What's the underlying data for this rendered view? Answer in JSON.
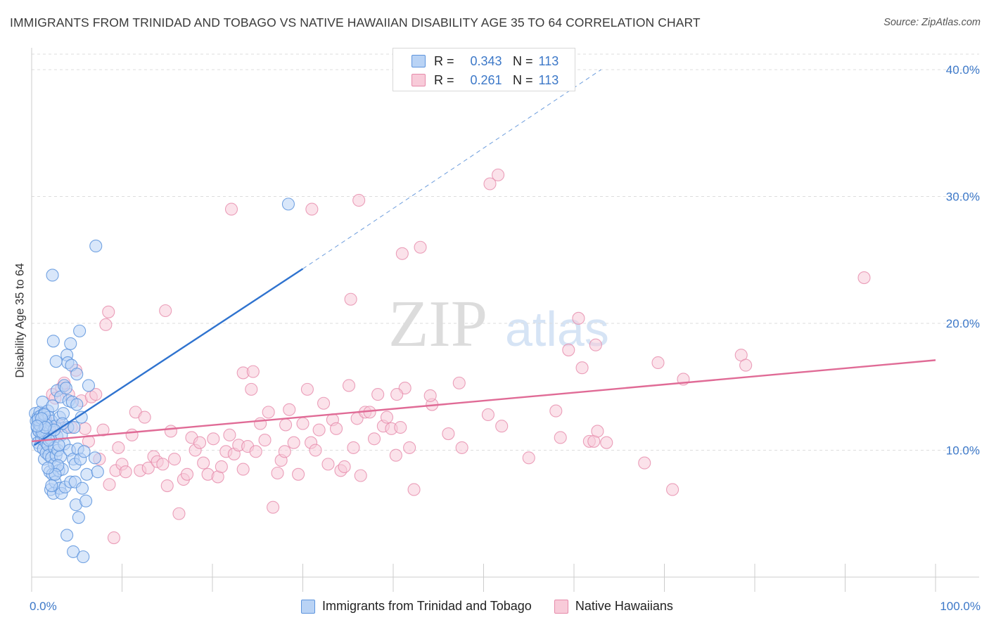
{
  "title": "IMMIGRANTS FROM TRINIDAD AND TOBAGO VS NATIVE HAWAIIAN DISABILITY AGE 35 TO 64 CORRELATION CHART",
  "source": "Source: ZipAtlas.com",
  "watermark": {
    "zip": "ZIP",
    "atlas": "atlas"
  },
  "legend": {
    "rows": [
      {
        "r_label": "R =",
        "r_value": "0.343",
        "n_label": "N =",
        "n_value": "113"
      },
      {
        "r_label": "R =",
        "r_value": "0.261",
        "n_label": "N =",
        "n_value": "113"
      }
    ]
  },
  "bottom_legend": {
    "series1": "Immigrants from Trinidad and Tobago",
    "series2": "Native Hawaiians"
  },
  "colors": {
    "blue_fill": "#b9d3f5",
    "blue_stroke": "#5d94dd",
    "blue_line": "#2f73cf",
    "pink_fill": "#f8cbd9",
    "pink_stroke": "#e68aaa",
    "pink_line": "#e06b96",
    "tick_text": "#3c78c8"
  },
  "chart_data": {
    "type": "scatter",
    "title": "IMMIGRANTS FROM TRINIDAD AND TOBAGO VS NATIVE HAWAIIAN DISABILITY AGE 35 TO 64 CORRELATION CHART",
    "xlabel": "",
    "ylabel": "Disability Age 35 to 64",
    "xlim": [
      0,
      100
    ],
    "ylim": [
      0,
      41.5
    ],
    "x_tick_labels": [
      "0.0%",
      "100.0%"
    ],
    "y_ticks": [
      10,
      20,
      30,
      40
    ],
    "y_tick_labels": [
      "10.0%",
      "20.0%",
      "30.0%",
      "40.0%"
    ],
    "grid": true,
    "legend_position": "top-center",
    "series": [
      {
        "name": "Immigrants from Trinidad and Tobago",
        "color": "#5d94dd",
        "r": 0.343,
        "n": 113,
        "trend": {
          "x": [
            0.3,
            30
          ],
          "y": [
            10.4,
            24.3
          ],
          "dashed_to": [
            63,
            40.0
          ]
        },
        "points": [
          [
            0.4,
            12.9
          ],
          [
            0.5,
            12.3
          ],
          [
            0.6,
            11.8
          ],
          [
            0.6,
            11.2
          ],
          [
            0.7,
            12.6
          ],
          [
            0.7,
            10.6
          ],
          [
            0.8,
            12.0
          ],
          [
            0.8,
            11.5
          ],
          [
            0.9,
            13.0
          ],
          [
            0.9,
            10.3
          ],
          [
            1.0,
            12.7
          ],
          [
            1.0,
            11.9
          ],
          [
            1.1,
            11.3
          ],
          [
            1.1,
            10.9
          ],
          [
            1.2,
            13.8
          ],
          [
            1.2,
            12.2
          ],
          [
            1.3,
            11.6
          ],
          [
            1.3,
            10.1
          ],
          [
            1.4,
            12.9
          ],
          [
            1.4,
            9.3
          ],
          [
            1.5,
            12.4
          ],
          [
            1.5,
            11.0
          ],
          [
            1.6,
            10.6
          ],
          [
            1.6,
            9.8
          ],
          [
            1.7,
            12.1
          ],
          [
            1.7,
            11.4
          ],
          [
            1.8,
            13.1
          ],
          [
            1.8,
            10.4
          ],
          [
            1.9,
            9.6
          ],
          [
            1.9,
            12.6
          ],
          [
            2.0,
            11.7
          ],
          [
            2.0,
            8.3
          ],
          [
            2.1,
            10.9
          ],
          [
            2.1,
            6.9
          ],
          [
            2.2,
            12.3
          ],
          [
            2.2,
            9.4
          ],
          [
            2.3,
            13.5
          ],
          [
            2.3,
            8.1
          ],
          [
            2.4,
            18.6
          ],
          [
            2.4,
            6.6
          ],
          [
            2.5,
            10.2
          ],
          [
            2.5,
            8.9
          ],
          [
            2.6,
            11.9
          ],
          [
            2.6,
            7.5
          ],
          [
            2.7,
            17.0
          ],
          [
            2.7,
            9.6
          ],
          [
            2.8,
            14.7
          ],
          [
            2.8,
            11.1
          ],
          [
            2.9,
            10.0
          ],
          [
            3.0,
            8.4
          ],
          [
            3.1,
            12.6
          ],
          [
            3.1,
            7.0
          ],
          [
            3.2,
            14.2
          ],
          [
            3.2,
            9.5
          ],
          [
            3.3,
            11.2
          ],
          [
            3.3,
            6.6
          ],
          [
            3.4,
            8.5
          ],
          [
            3.5,
            12.9
          ],
          [
            3.6,
            15.1
          ],
          [
            3.6,
            10.5
          ],
          [
            3.7,
            7.1
          ],
          [
            3.8,
            14.9
          ],
          [
            3.9,
            17.5
          ],
          [
            3.9,
            3.3
          ],
          [
            4.0,
            16.9
          ],
          [
            4.0,
            11.8
          ],
          [
            4.1,
            13.9
          ],
          [
            4.2,
            10.0
          ],
          [
            4.3,
            18.4
          ],
          [
            4.3,
            7.5
          ],
          [
            4.4,
            16.7
          ],
          [
            4.5,
            13.8
          ],
          [
            4.6,
            9.3
          ],
          [
            4.6,
            2.0
          ],
          [
            4.7,
            11.8
          ],
          [
            4.8,
            8.9
          ],
          [
            4.8,
            7.5
          ],
          [
            4.9,
            5.7
          ],
          [
            5.0,
            16.0
          ],
          [
            5.0,
            13.6
          ],
          [
            5.1,
            10.1
          ],
          [
            5.2,
            4.7
          ],
          [
            5.3,
            19.4
          ],
          [
            5.4,
            9.3
          ],
          [
            5.5,
            12.6
          ],
          [
            5.6,
            7.0
          ],
          [
            5.7,
            1.6
          ],
          [
            5.8,
            9.9
          ],
          [
            6.0,
            6.0
          ],
          [
            6.1,
            8.1
          ],
          [
            6.3,
            15.1
          ],
          [
            7.0,
            9.4
          ],
          [
            7.1,
            26.1
          ],
          [
            7.3,
            8.3
          ],
          [
            2.3,
            23.8
          ],
          [
            0.8,
            11.5
          ],
          [
            1.2,
            11.4
          ],
          [
            1.9,
            10.8
          ],
          [
            2.9,
            8.8
          ],
          [
            3.4,
            12.1
          ],
          [
            0.9,
            12.0
          ],
          [
            1.6,
            12.0
          ],
          [
            2.5,
            11.6
          ],
          [
            0.7,
            12.4
          ],
          [
            1.4,
            12.8
          ],
          [
            1.1,
            12.5
          ],
          [
            2.6,
            8.1
          ],
          [
            3.0,
            10.4
          ],
          [
            1.8,
            8.6
          ],
          [
            2.2,
            7.2
          ],
          [
            28.4,
            29.4
          ],
          [
            1.5,
            11.8
          ],
          [
            0.6,
            11.9
          ]
        ]
      },
      {
        "name": "Native Hawaiians",
        "color": "#e68aaa",
        "r": 0.261,
        "n": 113,
        "trend": {
          "x": [
            0,
            100
          ],
          "y": [
            10.7,
            17.1
          ]
        },
        "points": [
          [
            1.6,
            12.4
          ],
          [
            1.9,
            11.9
          ],
          [
            2.3,
            14.4
          ],
          [
            2.6,
            14.1
          ],
          [
            3.1,
            11.9
          ],
          [
            3.3,
            14.9
          ],
          [
            3.6,
            15.3
          ],
          [
            4.1,
            14.4
          ],
          [
            4.4,
            11.8
          ],
          [
            4.9,
            16.3
          ],
          [
            5.5,
            13.9
          ],
          [
            5.9,
            11.7
          ],
          [
            6.3,
            10.7
          ],
          [
            6.6,
            14.2
          ],
          [
            7.1,
            14.4
          ],
          [
            7.5,
            9.3
          ],
          [
            7.9,
            11.6
          ],
          [
            8.2,
            19.9
          ],
          [
            8.6,
            7.3
          ],
          [
            9.1,
            3.1
          ],
          [
            9.3,
            8.4
          ],
          [
            9.6,
            10.2
          ],
          [
            10.0,
            8.9
          ],
          [
            10.4,
            8.3
          ],
          [
            11.1,
            11.2
          ],
          [
            11.5,
            13.0
          ],
          [
            12.0,
            8.4
          ],
          [
            12.5,
            12.6
          ],
          [
            12.9,
            8.6
          ],
          [
            13.5,
            9.5
          ],
          [
            13.9,
            9.1
          ],
          [
            14.5,
            8.9
          ],
          [
            15.0,
            7.2
          ],
          [
            15.4,
            11.5
          ],
          [
            15.8,
            9.3
          ],
          [
            16.3,
            5.0
          ],
          [
            16.8,
            7.7
          ],
          [
            17.2,
            8.1
          ],
          [
            17.7,
            11.0
          ],
          [
            18.1,
            10.0
          ],
          [
            18.6,
            10.6
          ],
          [
            19.0,
            9.0
          ],
          [
            19.5,
            8.1
          ],
          [
            20.1,
            10.9
          ],
          [
            20.6,
            7.9
          ],
          [
            21.0,
            8.7
          ],
          [
            21.5,
            9.9
          ],
          [
            21.9,
            11.2
          ],
          [
            22.4,
            9.7
          ],
          [
            22.9,
            10.4
          ],
          [
            23.4,
            8.5
          ],
          [
            23.9,
            10.3
          ],
          [
            24.3,
            14.8
          ],
          [
            24.8,
            9.9
          ],
          [
            25.3,
            12.1
          ],
          [
            25.8,
            10.8
          ],
          [
            26.2,
            13.0
          ],
          [
            26.7,
            5.5
          ],
          [
            27.2,
            8.2
          ],
          [
            27.6,
            9.2
          ],
          [
            28.1,
            12.0
          ],
          [
            28.5,
            13.2
          ],
          [
            29.0,
            10.6
          ],
          [
            29.5,
            8.1
          ],
          [
            30.0,
            12.1
          ],
          [
            30.5,
            14.8
          ],
          [
            30.9,
            10.6
          ],
          [
            31.4,
            10.0
          ],
          [
            31.8,
            11.6
          ],
          [
            32.3,
            13.7
          ],
          [
            32.8,
            8.9
          ],
          [
            33.3,
            12.4
          ],
          [
            33.7,
            11.7
          ],
          [
            34.2,
            8.4
          ],
          [
            34.6,
            8.7
          ],
          [
            35.1,
            15.1
          ],
          [
            35.6,
            10.2
          ],
          [
            36.0,
            12.5
          ],
          [
            36.4,
            8.0
          ],
          [
            36.9,
            13.0
          ],
          [
            37.4,
            13.0
          ],
          [
            37.9,
            10.9
          ],
          [
            38.3,
            14.4
          ],
          [
            38.9,
            11.9
          ],
          [
            39.3,
            12.6
          ],
          [
            39.8,
            11.7
          ],
          [
            40.3,
            9.6
          ],
          [
            40.8,
            11.8
          ],
          [
            41.3,
            14.9
          ],
          [
            41.8,
            10.2
          ],
          [
            42.3,
            6.9
          ],
          [
            44.3,
            13.6
          ],
          [
            46.1,
            11.3
          ],
          [
            47.3,
            15.3
          ],
          [
            50.5,
            12.8
          ],
          [
            52.0,
            11.9
          ],
          [
            55.0,
            9.4
          ],
          [
            58.5,
            11.0
          ],
          [
            59.4,
            17.9
          ],
          [
            60.9,
            16.5
          ],
          [
            61.7,
            10.7
          ],
          [
            62.2,
            10.7
          ],
          [
            62.6,
            11.5
          ],
          [
            63.6,
            10.6
          ],
          [
            67.8,
            9.0
          ],
          [
            69.3,
            16.9
          ],
          [
            70.9,
            6.9
          ],
          [
            72.1,
            15.6
          ],
          [
            78.5,
            17.5
          ],
          [
            79.0,
            16.7
          ],
          [
            92.1,
            23.6
          ],
          [
            22.1,
            29.0
          ],
          [
            28.0,
            9.9
          ]
        ]
      }
    ],
    "extra_pink_points": [
      [
        8.5,
        20.9
      ],
      [
        14.8,
        21.0
      ],
      [
        23.4,
        16.1
      ],
      [
        24.5,
        16.2
      ],
      [
        31.0,
        29.0
      ],
      [
        35.3,
        21.9
      ],
      [
        36.2,
        29.7
      ],
      [
        41.0,
        25.5
      ],
      [
        43.0,
        26.0
      ],
      [
        50.7,
        31.0
      ],
      [
        51.6,
        31.7
      ],
      [
        60.5,
        20.4
      ],
      [
        62.4,
        18.3
      ],
      [
        58.0,
        13.1
      ],
      [
        40.4,
        14.4
      ],
      [
        44.1,
        14.3
      ],
      [
        47.6,
        10.2
      ]
    ]
  }
}
